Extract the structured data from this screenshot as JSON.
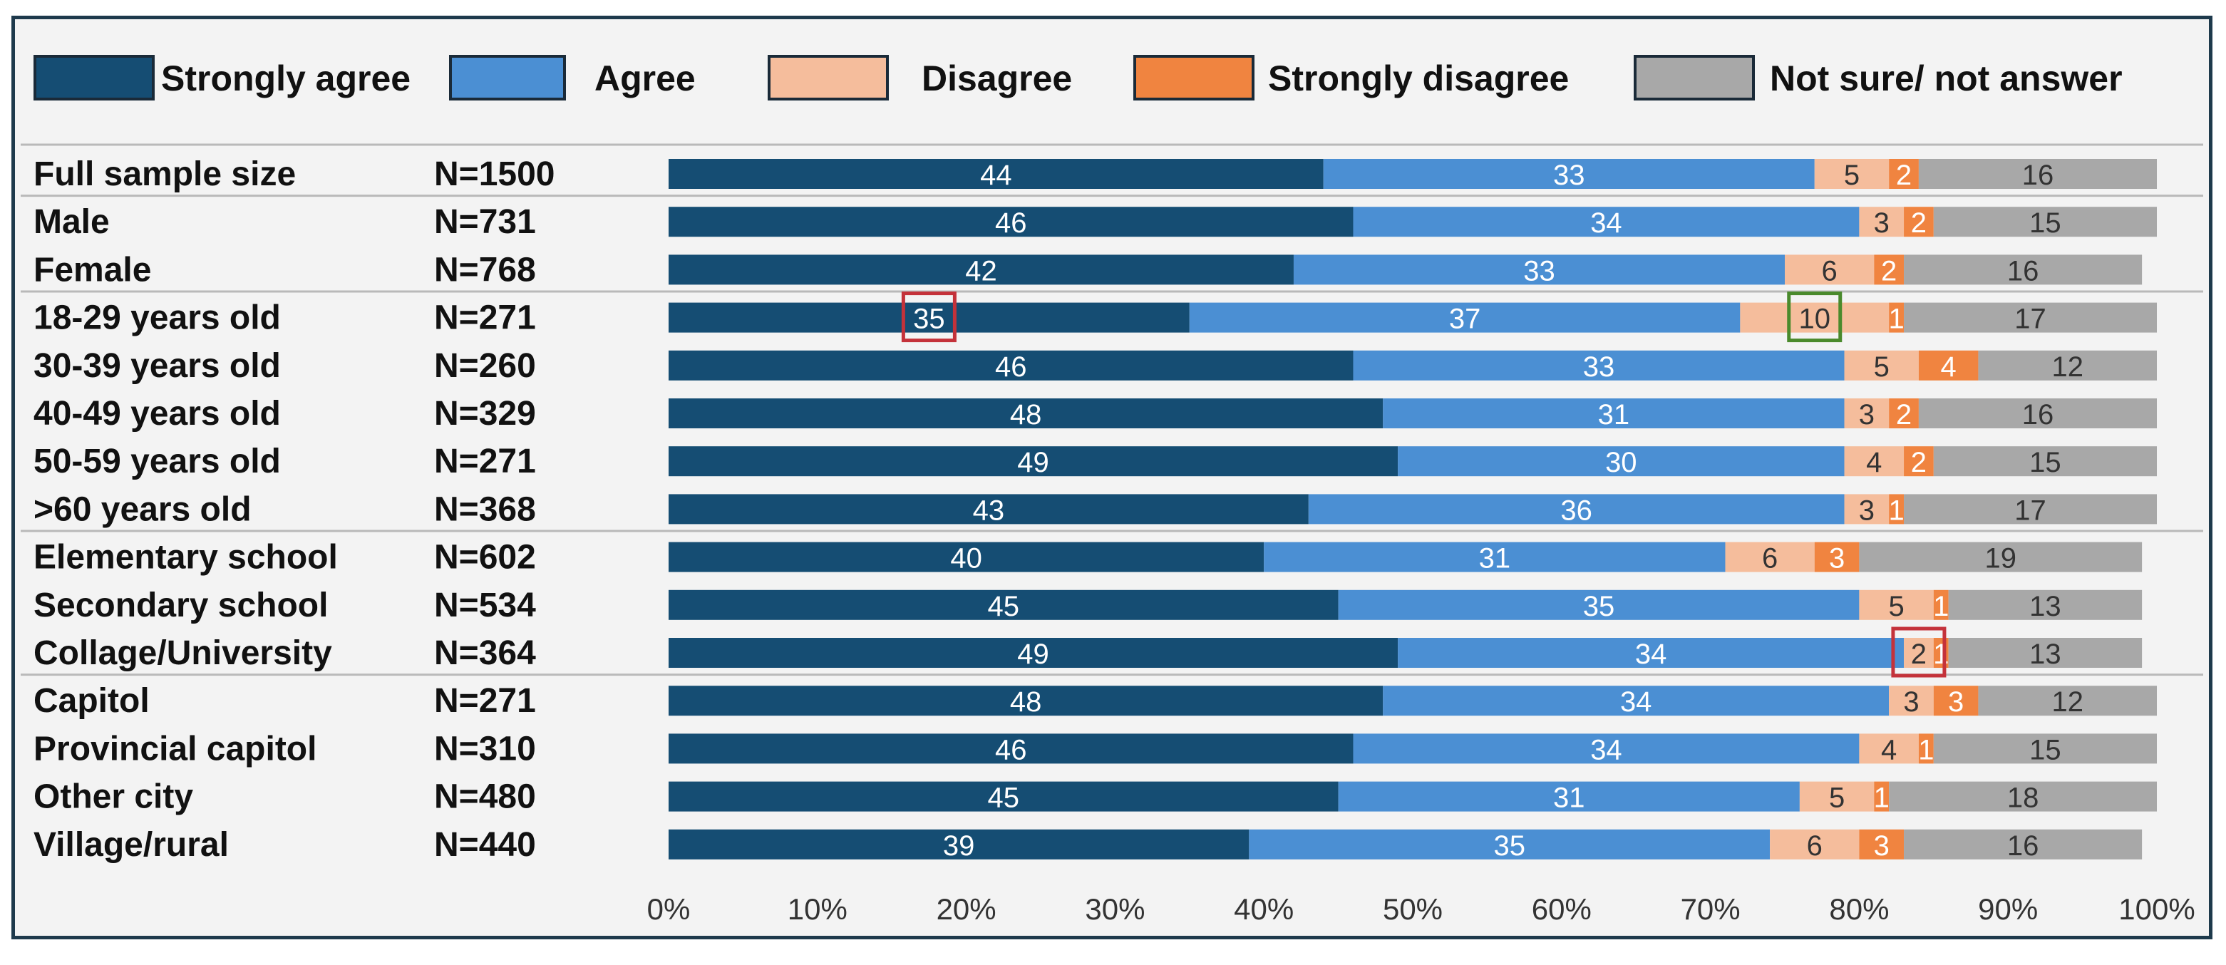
{
  "chart_data": {
    "type": "bar",
    "orientation": "horizontal",
    "stacked": true,
    "normalized_percent": true,
    "legend_position": "top",
    "series": [
      {
        "name": "Strongly agree",
        "color": "#154d73",
        "values": [
          44,
          46,
          42,
          35,
          46,
          48,
          49,
          43,
          40,
          45,
          49,
          48,
          46,
          45,
          39
        ]
      },
      {
        "name": "Agree",
        "color": "#4b8fd3",
        "values": [
          33,
          34,
          33,
          37,
          33,
          31,
          30,
          36,
          31,
          35,
          34,
          34,
          34,
          31,
          35
        ]
      },
      {
        "name": "Disagree",
        "color": "#f5bd9c",
        "values": [
          5,
          3,
          6,
          10,
          5,
          3,
          4,
          3,
          6,
          5,
          2,
          3,
          4,
          5,
          6
        ]
      },
      {
        "name": "Strongly disagree",
        "color": "#f08440",
        "values": [
          2,
          2,
          2,
          1,
          4,
          2,
          2,
          1,
          3,
          1,
          1,
          3,
          1,
          1,
          3
        ]
      },
      {
        "name": "Not sure/ not answer",
        "color": "#a8a8a8",
        "values": [
          16,
          15,
          16,
          17,
          12,
          16,
          15,
          17,
          19,
          13,
          13,
          12,
          15,
          18,
          16
        ]
      }
    ],
    "categories": [
      {
        "label": "Full sample size",
        "n": "N=1500"
      },
      {
        "label": "Male",
        "n": "N=731"
      },
      {
        "label": "Female",
        "n": "N=768"
      },
      {
        "label": "18-29 years old",
        "n": "N=271"
      },
      {
        "label": "30-39 years old",
        "n": "N=260"
      },
      {
        "label": "40-49 years old",
        "n": "N=329"
      },
      {
        "label": "50-59 years old",
        "n": "N=271"
      },
      {
        "label": ">60 years old",
        "n": "N=368"
      },
      {
        "label": "Elementary school",
        "n": "N=602"
      },
      {
        "label": "Secondary school",
        "n": "N=534"
      },
      {
        "label": "Collage/University",
        "n": "N=364"
      },
      {
        "label": "Capitol",
        "n": "N=271"
      },
      {
        "label": "Provincial capitol",
        "n": "N=310"
      },
      {
        "label": "Other city",
        "n": "N=480"
      },
      {
        "label": "Village/rural",
        "n": "N=440"
      }
    ],
    "group_separators_after_rows": [
      0,
      2,
      7,
      10
    ],
    "x_ticks": [
      "0%",
      "10%",
      "20%",
      "30%",
      "40%",
      "50%",
      "60%",
      "70%",
      "80%",
      "90%",
      "100%"
    ],
    "xlim": [
      0,
      100
    ],
    "highlights": [
      {
        "row": 3,
        "series": 0,
        "color": "#c4323a"
      },
      {
        "row": 3,
        "series": 2,
        "color": "#4a8a2c"
      },
      {
        "row": 10,
        "series": 2,
        "color": "#c4323a"
      }
    ],
    "label_colors": {
      "light_on_dark": "#ffffff",
      "dark_on_light": "#333333"
    },
    "separator_color": "#b9b9b9"
  }
}
